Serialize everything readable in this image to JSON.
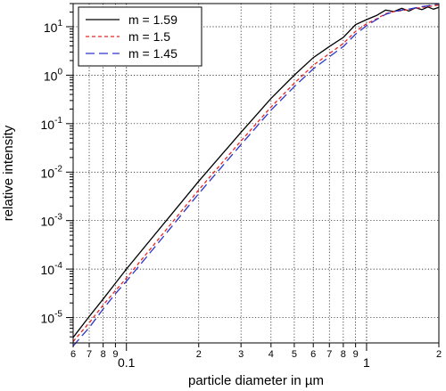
{
  "chart_data": {
    "type": "line",
    "title": "",
    "xlabel": "particle diameter in µm",
    "ylabel": "relative intensity",
    "xscale": "log",
    "yscale": "log",
    "xlim": [
      0.06,
      2
    ],
    "ylim": [
      3e-06,
      30
    ],
    "grid": true,
    "legend_position": "top-left",
    "x_ticks": [
      {
        "value": 0.06,
        "label": "6"
      },
      {
        "value": 0.07,
        "label": "7"
      },
      {
        "value": 0.08,
        "label": "8"
      },
      {
        "value": 0.09,
        "label": "9"
      },
      {
        "value": 0.1,
        "label": "0.1"
      },
      {
        "value": 0.2,
        "label": "2"
      },
      {
        "value": 0.3,
        "label": "3"
      },
      {
        "value": 0.4,
        "label": "4"
      },
      {
        "value": 0.5,
        "label": "5"
      },
      {
        "value": 0.6,
        "label": "6"
      },
      {
        "value": 0.7,
        "label": "7"
      },
      {
        "value": 0.8,
        "label": "8"
      },
      {
        "value": 0.9,
        "label": "9"
      },
      {
        "value": 1,
        "label": "1"
      },
      {
        "value": 2,
        "label": "2"
      }
    ],
    "y_ticks": [
      {
        "value": 1e-05,
        "base": "10",
        "exp": "-5"
      },
      {
        "value": 0.0001,
        "base": "10",
        "exp": "-4"
      },
      {
        "value": 0.001,
        "base": "10",
        "exp": "-3"
      },
      {
        "value": 0.01,
        "base": "10",
        "exp": "-2"
      },
      {
        "value": 0.1,
        "base": "10",
        "exp": "-1"
      },
      {
        "value": 1,
        "base": "10",
        "exp": "0"
      },
      {
        "value": 10,
        "base": "10",
        "exp": "1"
      }
    ],
    "series": [
      {
        "name": "m = 1.59",
        "color": "#000000",
        "dash": "solid",
        "points": [
          [
            0.06,
            3.9e-06
          ],
          [
            0.07,
            1.05e-05
          ],
          [
            0.08,
            2.4e-05
          ],
          [
            0.09,
            5.1e-05
          ],
          [
            0.1,
            0.0001
          ],
          [
            0.15,
            0.00115
          ],
          [
            0.2,
            0.0065
          ],
          [
            0.3,
            0.066
          ],
          [
            0.4,
            0.33
          ],
          [
            0.5,
            1.0
          ],
          [
            0.6,
            2.3
          ],
          [
            0.7,
            3.9
          ],
          [
            0.8,
            6.0
          ],
          [
            0.9,
            11.0
          ],
          [
            1.0,
            14.0
          ],
          [
            1.1,
            17.0
          ],
          [
            1.2,
            22.0
          ],
          [
            1.3,
            20.5
          ],
          [
            1.4,
            24.0
          ],
          [
            1.5,
            21.0
          ],
          [
            1.6,
            24.5
          ],
          [
            1.7,
            22.5
          ],
          [
            1.8,
            25.5
          ],
          [
            1.9,
            23.0
          ],
          [
            2.0,
            25.0
          ]
        ]
      },
      {
        "name": "m = 1.5",
        "color": "#e8241f",
        "dash": "short",
        "points": [
          [
            0.06,
            3.2e-06
          ],
          [
            0.07,
            7.8e-06
          ],
          [
            0.08,
            1.8e-05
          ],
          [
            0.09,
            3.6e-05
          ],
          [
            0.1,
            6.5e-05
          ],
          [
            0.15,
            0.00075
          ],
          [
            0.2,
            0.0043
          ],
          [
            0.3,
            0.044
          ],
          [
            0.4,
            0.22
          ],
          [
            0.5,
            0.68
          ],
          [
            0.6,
            1.6
          ],
          [
            0.7,
            2.8
          ],
          [
            0.8,
            4.5
          ],
          [
            0.9,
            8.0
          ],
          [
            1.0,
            11.5
          ],
          [
            1.1,
            14.5
          ],
          [
            1.2,
            18.5
          ],
          [
            1.3,
            20.5
          ],
          [
            1.4,
            21.5
          ],
          [
            1.5,
            22.5
          ],
          [
            1.6,
            24.0
          ],
          [
            1.7,
            25.0
          ],
          [
            1.8,
            26.0
          ],
          [
            1.9,
            27.0
          ],
          [
            2.0,
            28.0
          ]
        ]
      },
      {
        "name": "m = 1.45",
        "color": "#2b36c9",
        "dash": "long",
        "points": [
          [
            0.06,
            2.6e-06
          ],
          [
            0.07,
            6.2e-06
          ],
          [
            0.08,
            1.5e-05
          ],
          [
            0.09,
            3.1e-05
          ],
          [
            0.1,
            5.6e-05
          ],
          [
            0.15,
            0.00063
          ],
          [
            0.2,
            0.0036
          ],
          [
            0.3,
            0.037
          ],
          [
            0.4,
            0.19
          ],
          [
            0.5,
            0.58
          ],
          [
            0.6,
            1.35
          ],
          [
            0.7,
            2.4
          ],
          [
            0.8,
            3.9
          ],
          [
            0.9,
            7.0
          ],
          [
            1.0,
            10.5
          ],
          [
            1.1,
            14.0
          ],
          [
            1.2,
            18.0
          ],
          [
            1.3,
            20.5
          ],
          [
            1.4,
            22.0
          ],
          [
            1.5,
            23.0
          ],
          [
            1.6,
            24.5
          ],
          [
            1.7,
            26.0
          ],
          [
            1.8,
            27.0
          ],
          [
            1.9,
            28.5
          ],
          [
            2.0,
            30.0
          ]
        ]
      }
    ]
  }
}
